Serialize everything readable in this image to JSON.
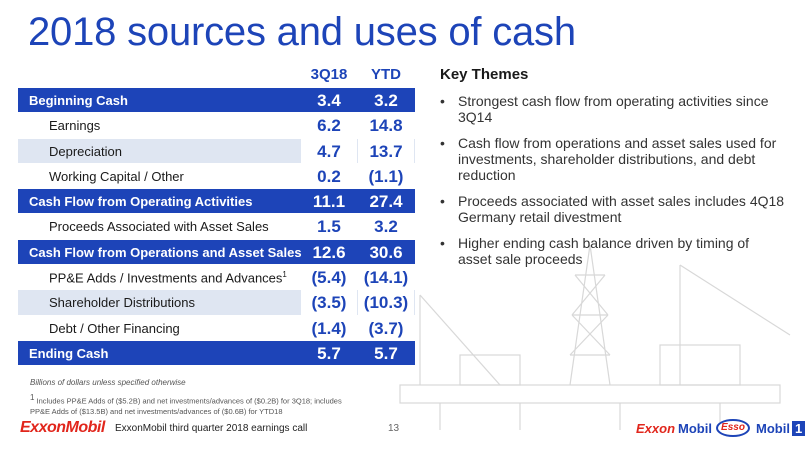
{
  "title": "2018 sources and uses of cash",
  "table": {
    "headers": [
      "3Q18",
      "YTD"
    ],
    "rows": [
      {
        "label": "Beginning Cash",
        "q": "3.4",
        "ytd": "3.2"
      },
      {
        "label": "Earnings",
        "q": "6.2",
        "ytd": "14.8"
      },
      {
        "label": "Depreciation",
        "q": "4.7",
        "ytd": "13.7"
      },
      {
        "label": "Working Capital / Other",
        "q": "0.2",
        "ytd": "(1.1)"
      },
      {
        "label": "Cash Flow from Operating Activities",
        "q": "11.1",
        "ytd": "27.4"
      },
      {
        "label": "Proceeds Associated with Asset Sales",
        "q": "1.5",
        "ytd": "3.2"
      },
      {
        "label": "Cash Flow from Operations and Asset Sales",
        "q": "12.6",
        "ytd": "30.6"
      },
      {
        "label": "PP&E Adds / Investments and Advances",
        "sup": "1",
        "q": "(5.4)",
        "ytd": "(14.1)"
      },
      {
        "label": "Shareholder Distributions",
        "q": "(3.5)",
        "ytd": "(10.3)"
      },
      {
        "label": "Debt / Other Financing",
        "q": "(1.4)",
        "ytd": "(3.7)"
      },
      {
        "label": "Ending Cash",
        "q": "5.7",
        "ytd": "5.7"
      }
    ]
  },
  "notes": {
    "units": "Billions of dollars unless specified otherwise",
    "footnote_mark": "1",
    "footnote": "Includes PP&E Adds of ($5.2B) and net investments/advances of ($0.2B) for 3Q18; includes PP&E Adds of ($13.5B) and net investments/advances of ($0.6B) for YTD18"
  },
  "themes": {
    "heading": "Key Themes",
    "bullet": "•",
    "items": [
      "Strongest cash flow from operating activities since 3Q14",
      "Cash flow from operations and asset sales used for investments, shareholder distributions, and debt reduction",
      "Proceeds associated with asset sales includes 4Q18 Germany retail divestment",
      "Higher ending cash balance driven by timing of asset sale proceeds"
    ]
  },
  "footer": {
    "logo": "ExxonMobil",
    "text": "ExxonMobil third quarter 2018 earnings call",
    "page": "13",
    "brands": {
      "exxon": "Exxon",
      "mobil": "Mobil",
      "esso": "Esso",
      "mobil1": "Mobil",
      "mobil1_num": "1"
    }
  },
  "colors": {
    "accent": "#1d44b8",
    "shade": "#dfe6f2",
    "brand_red": "#e1261c"
  },
  "icons": {
    "background": "offshore-rig-silhouette"
  }
}
